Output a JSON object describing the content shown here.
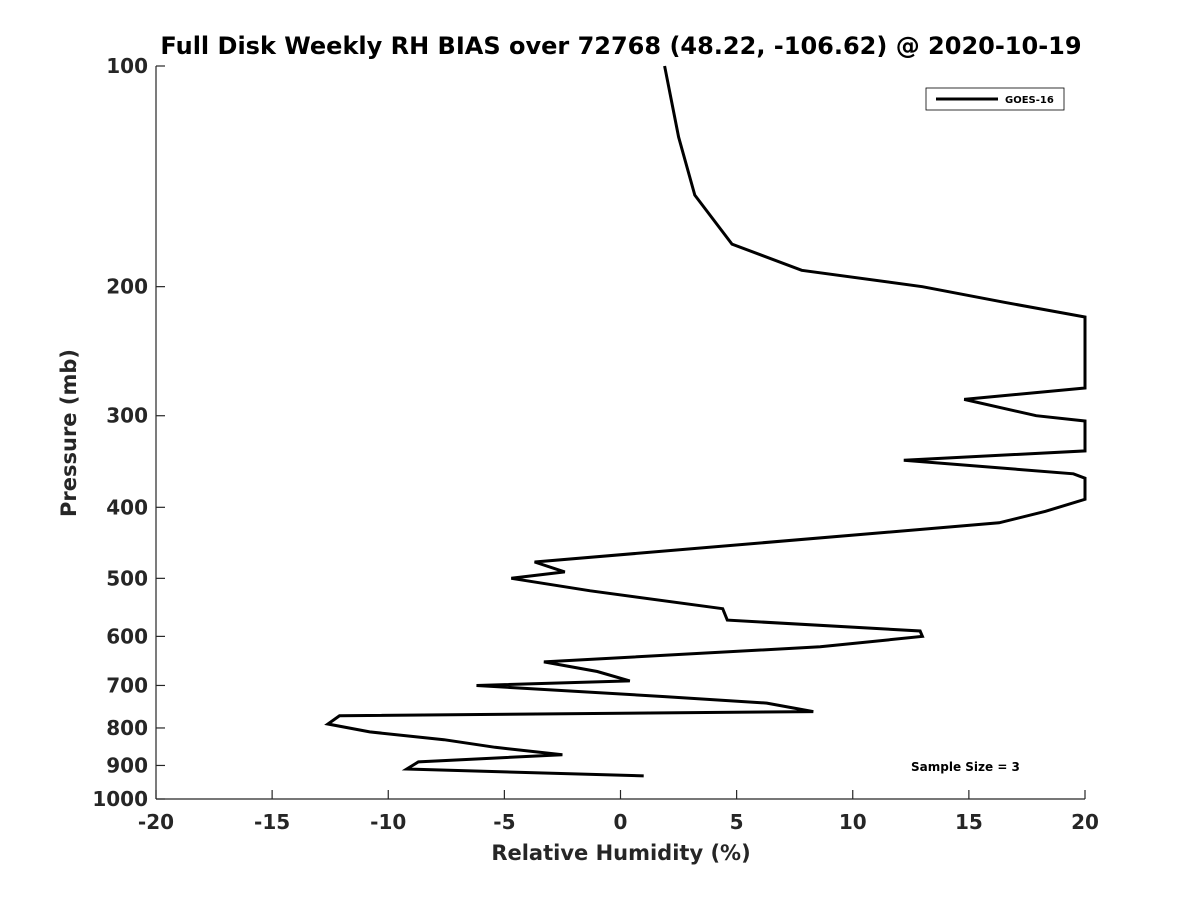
{
  "chart_data": {
    "type": "line",
    "title": "Full Disk Weekly RH BIAS over 72768 (48.22, -106.62) @ 2020-10-19",
    "xlabel": "Relative Humidity (%)",
    "ylabel": "Pressure (mb)",
    "xlim": [
      -20,
      20
    ],
    "ylim": [
      100,
      1000
    ],
    "yscale": "log",
    "y_reversed": true,
    "grid": false,
    "x_ticks": [
      -20,
      -15,
      -10,
      -5,
      0,
      5,
      10,
      15,
      20
    ],
    "x_tick_labels": [
      "-20",
      "-15",
      "-10",
      "-5",
      "0",
      "5",
      "10",
      "15",
      "20"
    ],
    "y_ticks": [
      100,
      200,
      300,
      400,
      500,
      600,
      700,
      800,
      900,
      1000
    ],
    "y_tick_labels": [
      "100",
      "200",
      "300",
      "400",
      "500",
      "600",
      "700",
      "800",
      "900",
      "1000"
    ],
    "legend": {
      "position": "top-right",
      "entries": [
        "GOES-16"
      ]
    },
    "annotations": [
      {
        "text": "Sample Size = 3",
        "position": "bottom-right"
      }
    ],
    "series": [
      {
        "name": "GOES-16",
        "color": "#000000",
        "points": [
          [
            1.9,
            100
          ],
          [
            2.5,
            125
          ],
          [
            3.2,
            150
          ],
          [
            4.8,
            175
          ],
          [
            7.8,
            190
          ],
          [
            13.0,
            200
          ],
          [
            16.5,
            210
          ],
          [
            20.0,
            220
          ],
          [
            20.0,
            275
          ],
          [
            14.8,
            285
          ],
          [
            17.9,
            300
          ],
          [
            20.0,
            305
          ],
          [
            20.0,
            335
          ],
          [
            12.2,
            345
          ],
          [
            19.5,
            360
          ],
          [
            20.0,
            365
          ],
          [
            20.0,
            390
          ],
          [
            18.3,
            405
          ],
          [
            16.3,
            420
          ],
          [
            -3.7,
            475
          ],
          [
            -2.4,
            490
          ],
          [
            -4.7,
            500
          ],
          [
            -1.3,
            520
          ],
          [
            4.4,
            550
          ],
          [
            4.6,
            570
          ],
          [
            12.9,
            590
          ],
          [
            13.0,
            600
          ],
          [
            8.6,
            620
          ],
          [
            -3.3,
            650
          ],
          [
            -1.0,
            670
          ],
          [
            0.4,
            690
          ],
          [
            -6.2,
            700
          ],
          [
            1.9,
            725
          ],
          [
            6.3,
            740
          ],
          [
            8.3,
            760
          ],
          [
            -12.1,
            770
          ],
          [
            -12.6,
            790
          ],
          [
            -10.8,
            810
          ],
          [
            -7.6,
            830
          ],
          [
            -5.4,
            850
          ],
          [
            -2.5,
            870
          ],
          [
            -8.7,
            890
          ],
          [
            -9.2,
            910
          ],
          [
            1.0,
            930
          ]
        ]
      }
    ]
  }
}
